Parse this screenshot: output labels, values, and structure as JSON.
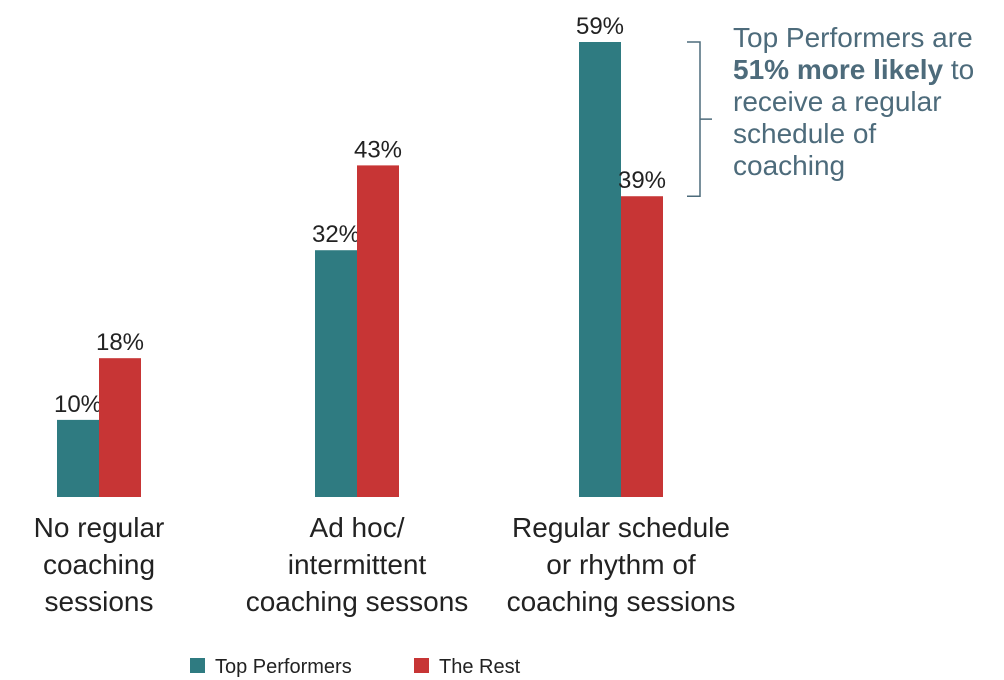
{
  "chart_data": {
    "type": "bar",
    "categories": [
      "No regular\ncoaching\nsessions",
      "Ad hoc/\nintermittent\ncoaching sessons",
      "Regular schedule\nor rhythm of\ncoaching sessions"
    ],
    "series": [
      {
        "name": "Top Performers",
        "color": "#2f7b81",
        "values": [
          10,
          32,
          59
        ],
        "value_labels": [
          "10%",
          "32%",
          "59%"
        ]
      },
      {
        "name": "The Rest",
        "color": "#c73535",
        "values": [
          18,
          43,
          39
        ],
        "value_labels": [
          "18%",
          "43%",
          "39%"
        ]
      }
    ],
    "annotation": [
      "Top Performers are ",
      "51% more likely",
      " to receive a regular schedule of coaching"
    ],
    "annotation_color": "#4d6b7b"
  }
}
